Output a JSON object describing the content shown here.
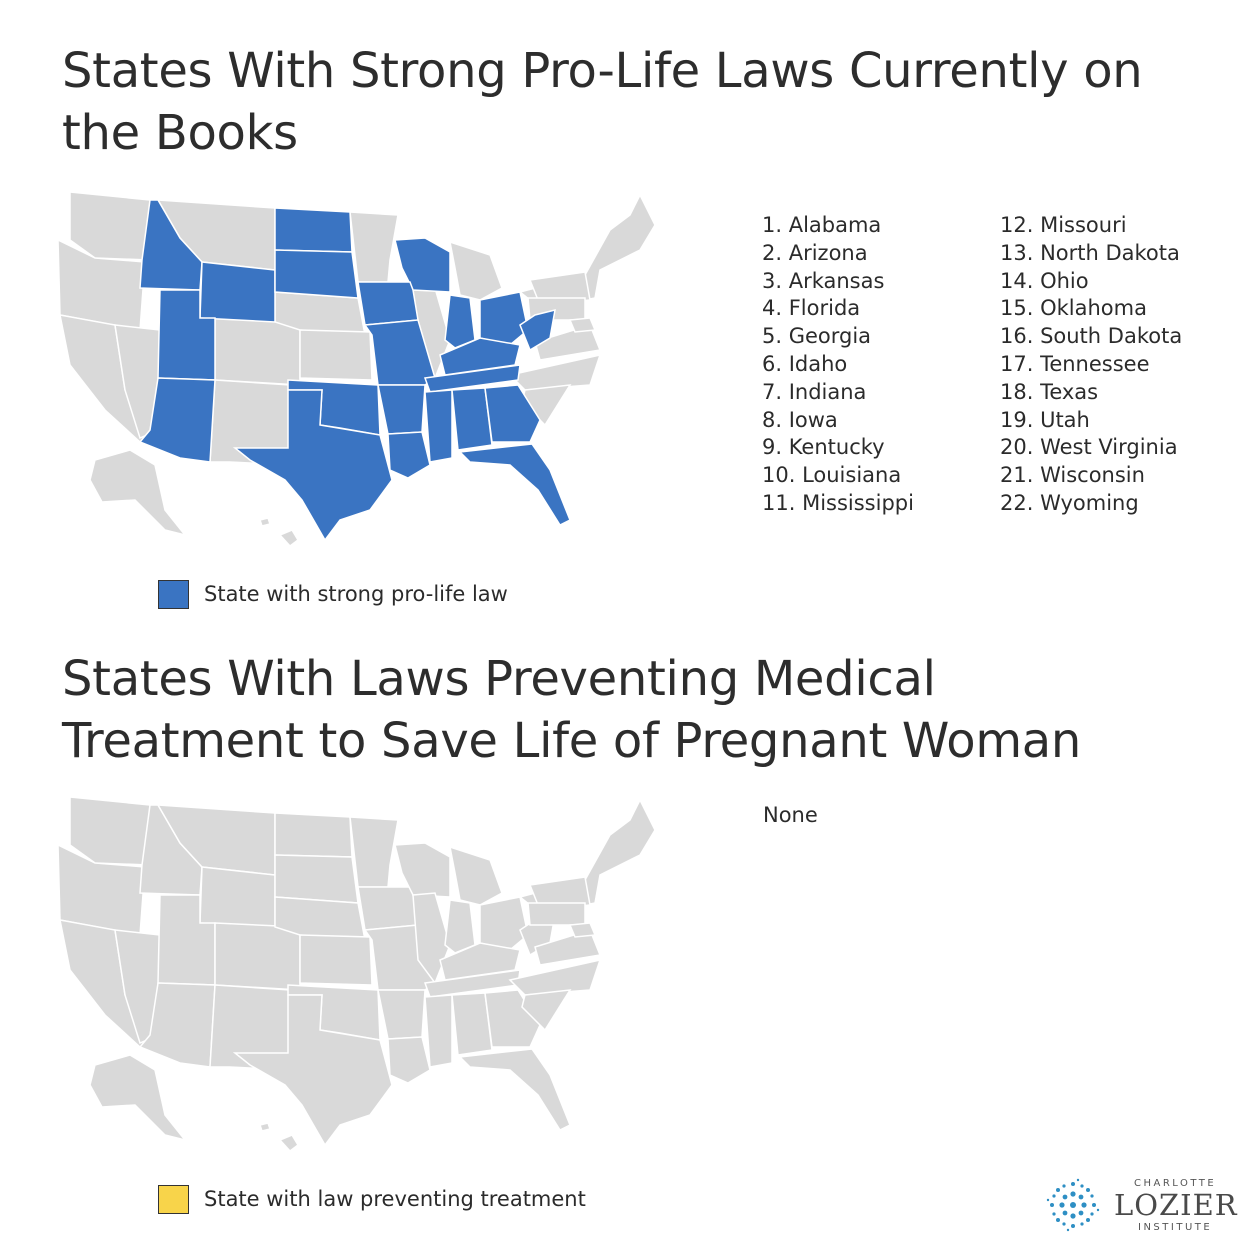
{
  "section1": {
    "title": "States With Strong Pro-Life Laws Currently on the Books",
    "states": [
      "1. Alabama",
      "2. Arizona",
      "3. Arkansas",
      "4. Florida",
      "5. Georgia",
      "6. Idaho",
      "7. Indiana",
      "8. Iowa",
      "9. Kentucky",
      "10. Louisiana",
      "11. Mississippi",
      "12. Missouri",
      "13. North Dakota",
      "14. Ohio",
      "15. Oklahoma",
      "16. South Dakota",
      "17. Tennessee",
      "18. Texas",
      "19. Utah",
      "20. West Virginia",
      "21. Wisconsin",
      "22. Wyoming"
    ],
    "legend_label": "State with strong pro-life law",
    "highlight_color": "#3a74c2"
  },
  "section2": {
    "title": "States With Laws Preventing Medical Treatment to Save Life of Pregnant Woman",
    "none_text": "None",
    "legend_label": "State with law preventing treatment",
    "highlight_color": "#f8d44a"
  },
  "colors": {
    "base_state": "#d9d9d9",
    "border": "#ffffff"
  },
  "logo": {
    "top": "CHARLOTTE",
    "name": "LOZIER",
    "bottom": "INSTITUTE"
  }
}
